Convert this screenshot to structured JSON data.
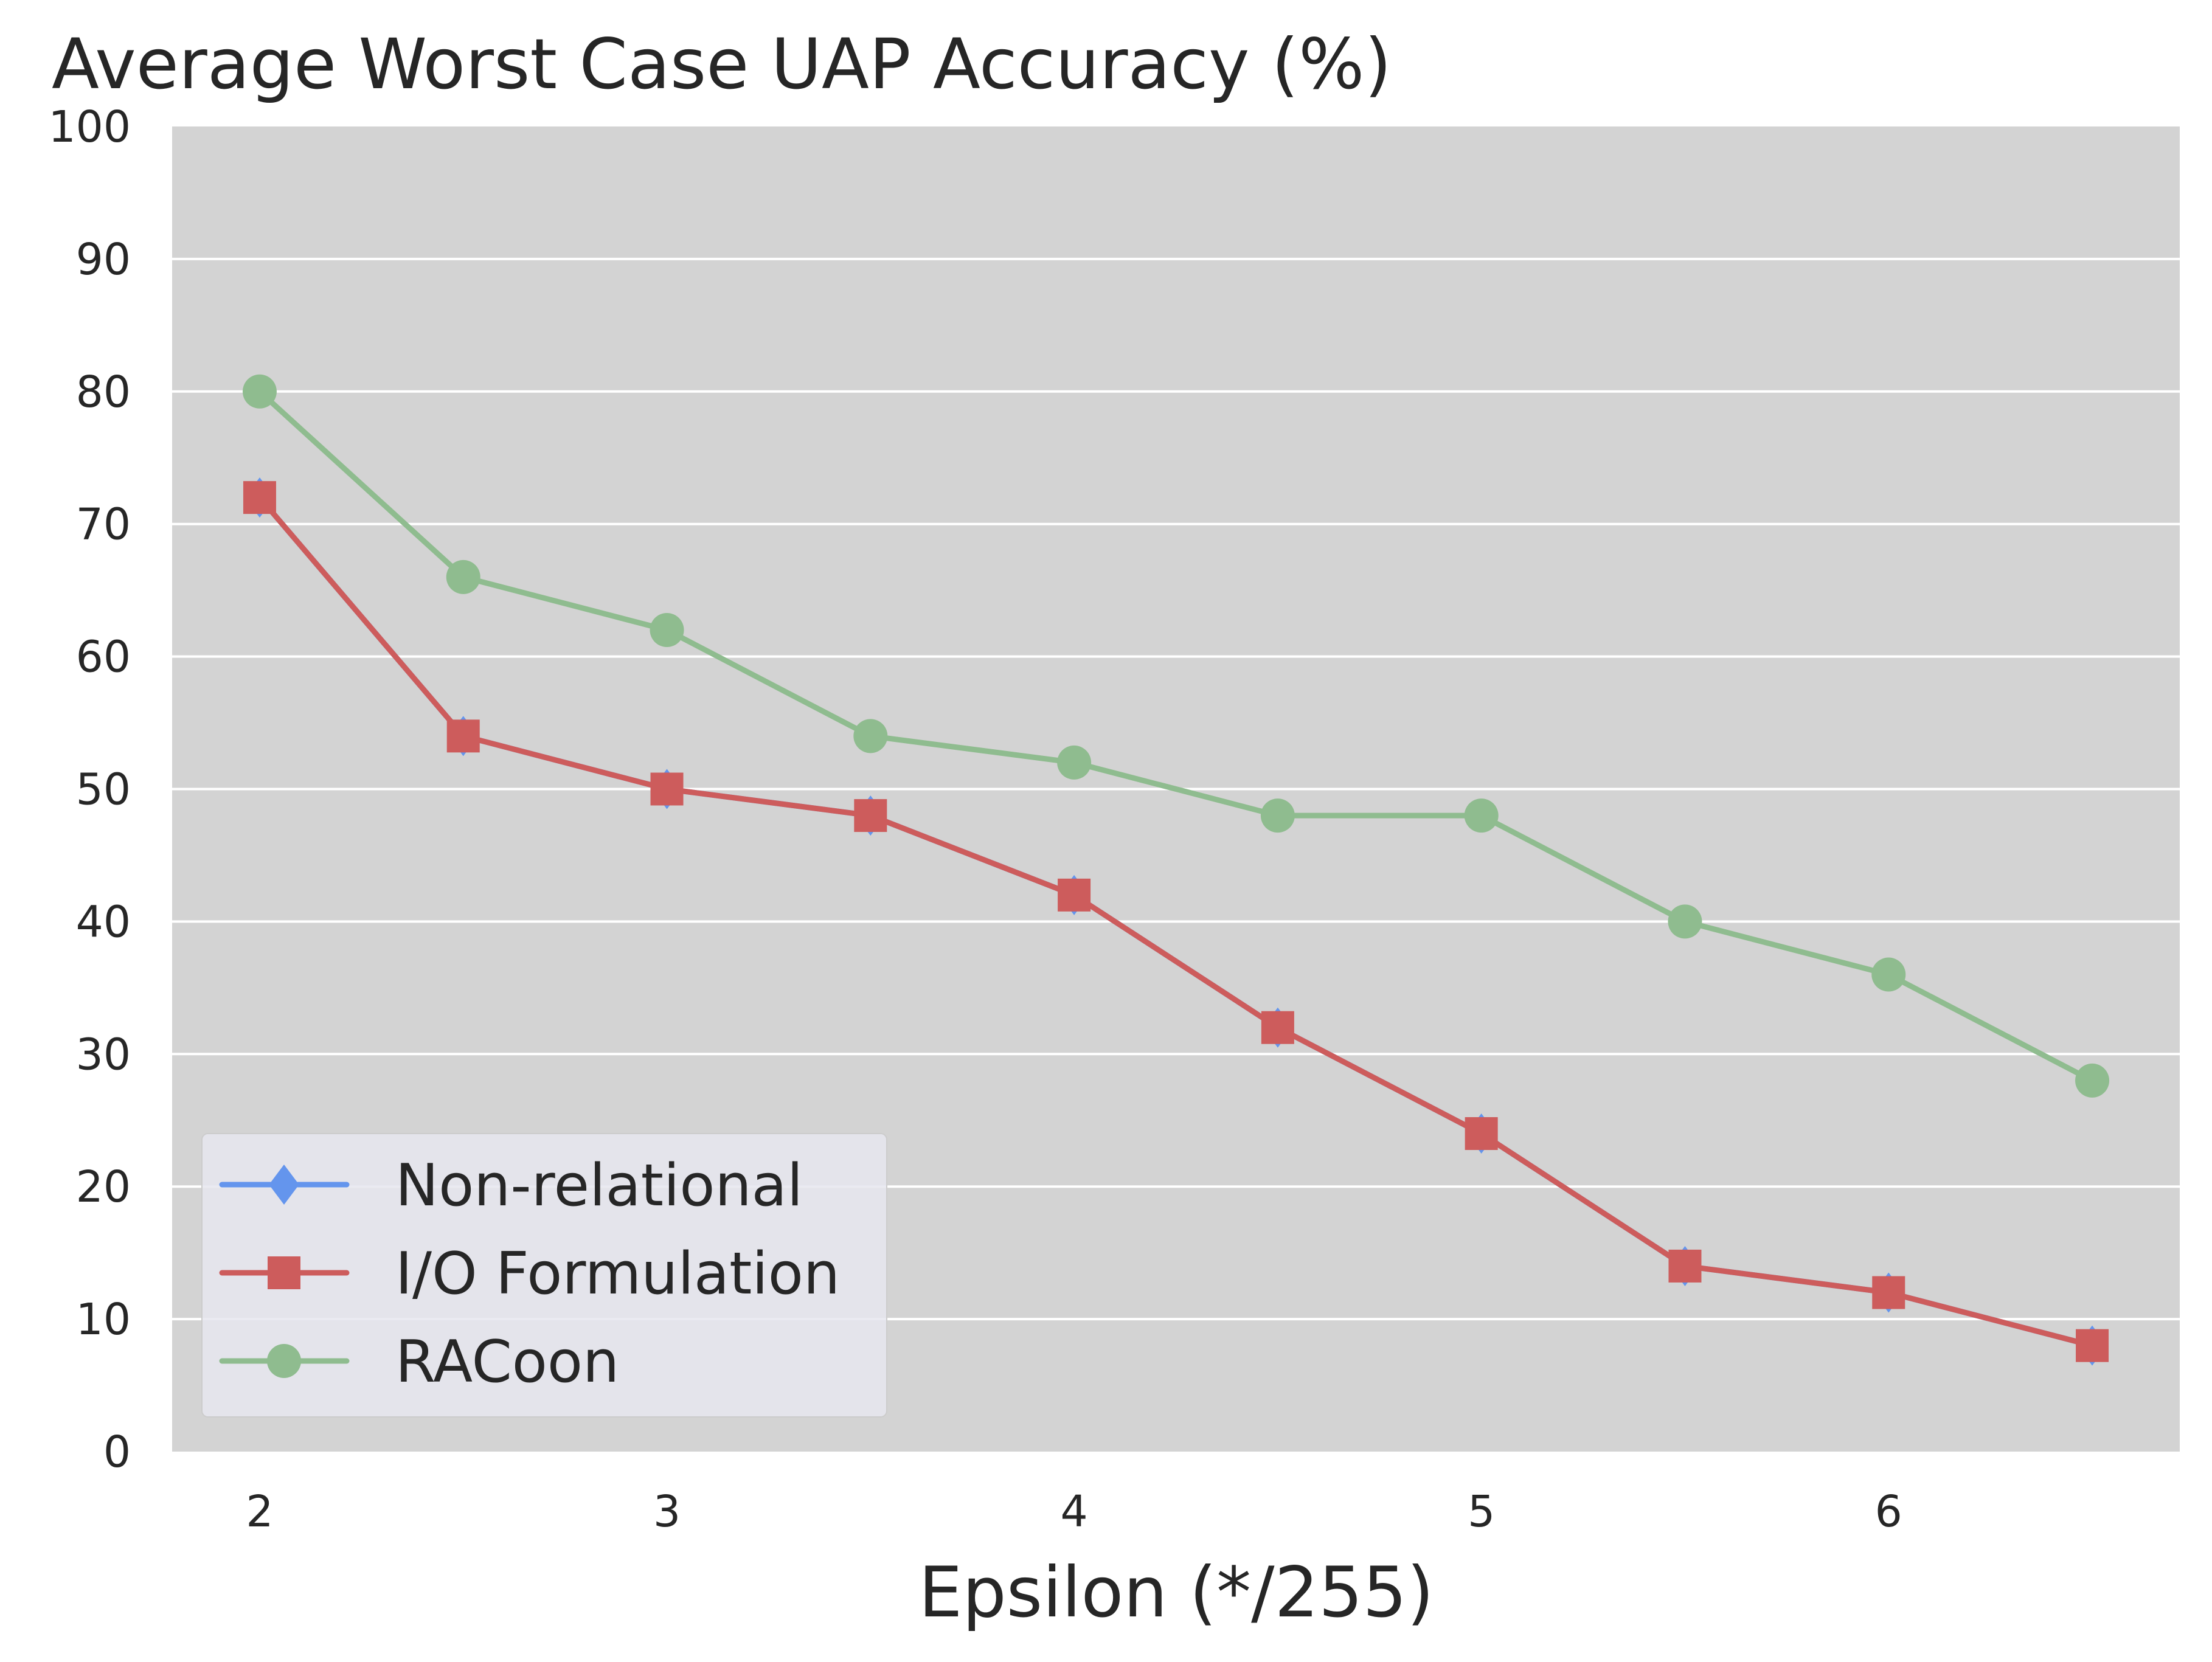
{
  "chart_data": {
    "type": "line",
    "title": "Average Worst Case UAP Accuracy (%)",
    "xlabel": "Epsilon (*/255)",
    "ylabel": "",
    "x": [
      2,
      2.5,
      3,
      3.5,
      4,
      4.5,
      5,
      5.5,
      6,
      6.5
    ],
    "xlim": [
      1.785,
      6.715
    ],
    "ylim": [
      0,
      100
    ],
    "xticks": [
      2,
      3,
      4,
      5,
      6
    ],
    "xtick_labels": [
      "2",
      "3",
      "4",
      "5",
      "6"
    ],
    "yticks": [
      0,
      10,
      20,
      30,
      40,
      50,
      60,
      70,
      80,
      90,
      100
    ],
    "ytick_labels": [
      "0",
      "10",
      "20",
      "30",
      "40",
      "50",
      "60",
      "70",
      "80",
      "90",
      "100"
    ],
    "grid": true,
    "legend_position": "lower-left",
    "series": [
      {
        "name": "Non-relational",
        "color": "#6495ED",
        "marker": "diamond",
        "values": [
          72,
          54,
          50,
          48,
          42,
          32,
          24,
          14,
          12,
          8
        ]
      },
      {
        "name": "I/O Formulation",
        "color": "#CD5C5C",
        "marker": "square",
        "values": [
          72,
          54,
          50,
          48,
          42,
          32,
          24,
          14,
          12,
          8
        ]
      },
      {
        "name": "RACoon",
        "color": "#8FBC8F",
        "marker": "circle",
        "values": [
          80,
          66,
          62,
          54,
          52,
          48,
          48,
          40,
          36,
          28
        ]
      }
    ],
    "colors": {
      "plot_background": "#D3D3D3",
      "grid": "#FFFFFF",
      "legend_background": "#E6E6EF",
      "text": "#262626"
    }
  }
}
